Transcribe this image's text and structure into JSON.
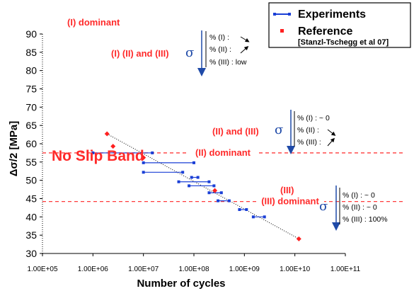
{
  "chart_data": {
    "type": "scatter",
    "xlabel": "Number of cycles",
    "ylabel": "Δσ/2  [MPa]",
    "xscale": "log",
    "xlim": [
      100000,
      100000000000
    ],
    "ylim": [
      30,
      90
    ],
    "x_ticks": [
      "1.00E+05",
      "1.00E+06",
      "1.00E+07",
      "1.00E+08",
      "1.00E+09",
      "1.00E+10",
      "1.00E+11"
    ],
    "y_ticks": [
      "30",
      "35",
      "40",
      "45",
      "50",
      "55",
      "60",
      "65",
      "70",
      "75",
      "80",
      "85",
      "90"
    ],
    "y_tick_values": [
      30,
      35,
      40,
      45,
      50,
      55,
      60,
      65,
      70,
      75,
      80,
      85,
      90
    ],
    "legend": {
      "position": "top-right",
      "experiments_label": "Experiments",
      "reference_label": "Reference",
      "reference_source": "[Stanzl-Tschegg et al 07]"
    },
    "colors": {
      "experiments": "#1a3fd6",
      "reference": "#ff2020",
      "threshold": "#ff3b3b",
      "arrow": "#1f4aa8"
    },
    "experiments": [
      {
        "x_min": 1000000,
        "x_max": 15000000,
        "y": 57.5
      },
      {
        "x_min": 10000000,
        "x_max": 100000000,
        "y": 54.8
      },
      {
        "x_min": 10000000,
        "x_max": 60000000,
        "y": 52.2
      },
      {
        "x_min": 50000000,
        "x_max": 200000000,
        "y": 49.6
      },
      {
        "x_min": 90000000,
        "x_max": 120000000,
        "y": 50.8
      },
      {
        "x_min": 80000000,
        "x_max": 250000000,
        "y": 48.5
      },
      {
        "x_min": 200000000,
        "x_max": 350000000,
        "y": 46.6
      },
      {
        "x_min": 300000000,
        "x_max": 500000000,
        "y": 44.4
      },
      {
        "x_min": 800000000,
        "x_max": 1100000000,
        "y": 42.0
      },
      {
        "x_min": 1500000000,
        "x_max": 2500000000,
        "y": 40.0
      }
    ],
    "reference": [
      {
        "x": 1900000,
        "y": 62.7
      },
      {
        "x": 2500000,
        "y": 59.3
      },
      {
        "x": 10000000,
        "y": 56.2
      },
      {
        "x": 260000000,
        "y": 47.2
      },
      {
        "x": 12000000000,
        "y": 34.0
      }
    ],
    "trend_line": [
      {
        "x": 1900000,
        "y": 62.7
      },
      {
        "x": 12000000000,
        "y": 34.0
      }
    ],
    "thresholds": [
      {
        "y": 57.5,
        "label": "(II) dominant"
      },
      {
        "y": 44.2,
        "label": "(III) dominant"
      }
    ],
    "annotations": {
      "no_slip_band": "No Slip Band",
      "region_top": "(I) dominant",
      "region_upper": "(I) (II) and (III)",
      "region_middle": "(II) and (III)",
      "region_lower": "(III)",
      "sigma": "σ",
      "box1": {
        "line1": "% (I) :",
        "line2": "% (II) :",
        "line3": "% (III) : low"
      },
      "box2": {
        "line1": "% (I)   : ~ 0",
        "line2": "% (II) :",
        "line3": "% (III) :"
      },
      "box3": {
        "line1": "% (I)   : ~ 0",
        "line2": "% (II)  : ~ 0",
        "line3": "% (III) : 100%"
      }
    }
  }
}
